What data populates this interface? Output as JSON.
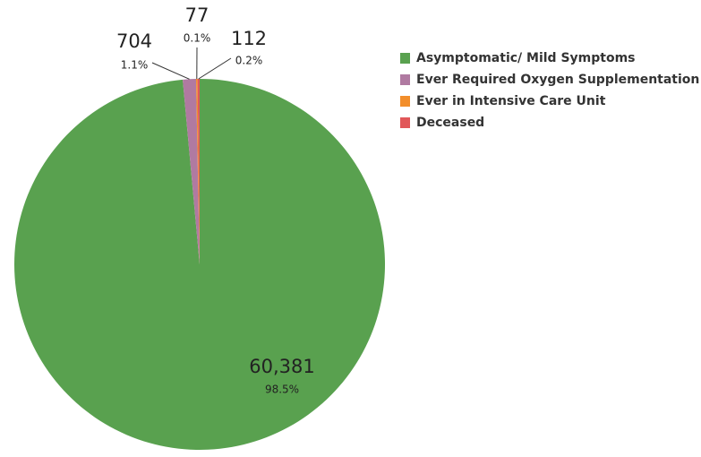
{
  "chart_data": {
    "type": "pie",
    "categories": [
      "Asymptomatic/ Mild Symptoms",
      "Ever Required Oxygen Supplementation",
      "Ever in Intensive Care Unit",
      "Deceased"
    ],
    "values": [
      60381,
      704,
      77,
      112
    ],
    "value_labels": [
      "60,381",
      "704",
      "77",
      "112"
    ],
    "percent_labels": [
      "98.5%",
      "1.1%",
      "0.1%",
      "0.2%"
    ],
    "colors": [
      "#59a14f",
      "#b07aa1",
      "#f28e2b",
      "#e15759"
    ],
    "legend": "top-right"
  }
}
